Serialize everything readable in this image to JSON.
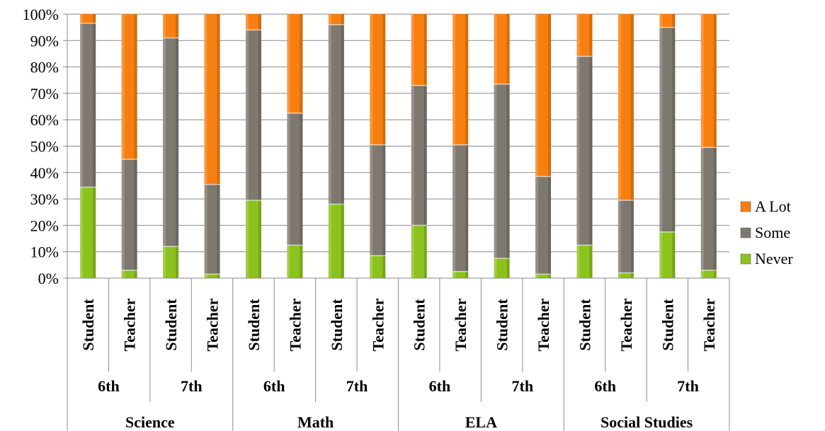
{
  "chart_data": {
    "type": "bar",
    "stacked": true,
    "percent": true,
    "ylim": [
      0,
      100
    ],
    "y_ticks": [
      "0%",
      "10%",
      "20%",
      "30%",
      "40%",
      "50%",
      "60%",
      "70%",
      "80%",
      "90%",
      "100%"
    ],
    "grid": true,
    "legend_position": "right",
    "categories": [
      {
        "subject": "Science",
        "grade": "6th",
        "group": "Student"
      },
      {
        "subject": "Science",
        "grade": "6th",
        "group": "Teacher"
      },
      {
        "subject": "Science",
        "grade": "7th",
        "group": "Student"
      },
      {
        "subject": "Science",
        "grade": "7th",
        "group": "Teacher"
      },
      {
        "subject": "Math",
        "grade": "6th",
        "group": "Student"
      },
      {
        "subject": "Math",
        "grade": "6th",
        "group": "Teacher"
      },
      {
        "subject": "Math",
        "grade": "7th",
        "group": "Student"
      },
      {
        "subject": "Math",
        "grade": "7th",
        "group": "Teacher"
      },
      {
        "subject": "ELA",
        "grade": "6th",
        "group": "Student"
      },
      {
        "subject": "ELA",
        "grade": "6th",
        "group": "Teacher"
      },
      {
        "subject": "ELA",
        "grade": "7th",
        "group": "Student"
      },
      {
        "subject": "ELA",
        "grade": "7th",
        "group": "Teacher"
      },
      {
        "subject": "Social Studies",
        "grade": "6th",
        "group": "Student"
      },
      {
        "subject": "Social Studies",
        "grade": "6th",
        "group": "Teacher"
      },
      {
        "subject": "Social Studies",
        "grade": "7th",
        "group": "Student"
      },
      {
        "subject": "Social Studies",
        "grade": "7th",
        "group": "Teacher"
      }
    ],
    "series": [
      {
        "name": "Never",
        "color": "#8cc21e",
        "values": [
          34.5,
          3,
          12,
          1.5,
          29.5,
          12.5,
          28,
          8.5,
          20,
          2.5,
          7.5,
          1.5,
          12.5,
          2,
          17.5,
          3
        ]
      },
      {
        "name": "Some",
        "color": "#7f786f",
        "values": [
          62,
          42,
          79,
          34,
          64.5,
          50,
          68,
          42,
          53,
          48,
          66,
          37,
          71.5,
          27.5,
          77.5,
          46.5
        ]
      },
      {
        "name": "A Lot",
        "color": "#f77f10",
        "values": [
          3.5,
          55,
          9,
          64.5,
          6,
          37.5,
          4,
          49.5,
          27,
          49.5,
          26.5,
          61.5,
          16,
          70.5,
          5,
          50.5
        ]
      }
    ],
    "legend_order": [
      "A Lot",
      "Some",
      "Never"
    ]
  }
}
